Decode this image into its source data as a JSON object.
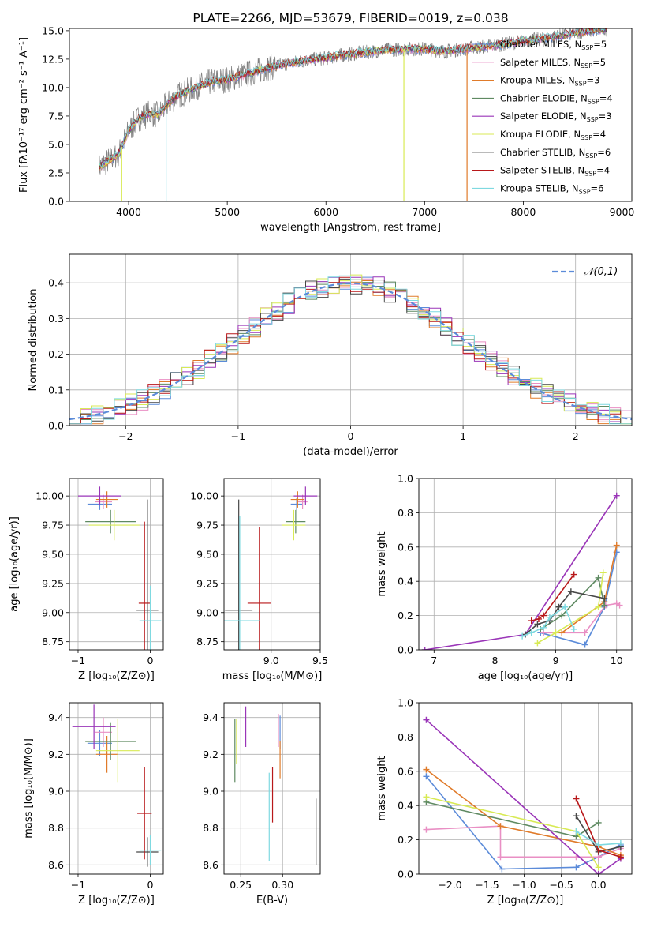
{
  "colors": {
    "Chabrier MILES": "#5b8bd9",
    "Salpeter MILES": "#e98fc4",
    "Kroupa MILES": "#e07b2a",
    "Chabrier ELODIE": "#5f8a62",
    "Salpeter ELODIE": "#9a35b8",
    "Kroupa ELODIE": "#d8ea55",
    "Chabrier STELIB": "#474747",
    "Salpeter STELIB": "#b8181a",
    "Kroupa STELIB": "#7fd9e0"
  },
  "chart_data": [
    {
      "id": "spectrum",
      "type": "line",
      "title": "PLATE=2266, MJD=53679, FIBERID=0019, z=0.038",
      "xlabel": "wavelength [Angstrom, rest frame]",
      "ylabel": "Flux [fλ10⁻¹⁷ erg cm⁻² s⁻¹ A⁻¹]",
      "xlim": [
        3400,
        9100
      ],
      "ylim": [
        0,
        15.2
      ],
      "xticks": [
        4000,
        5000,
        6000,
        7000,
        8000,
        9000
      ],
      "yticks": [
        0.0,
        2.5,
        5.0,
        7.5,
        10.0,
        12.5,
        15.0
      ],
      "grid": false,
      "legend": "top-right",
      "legend_entries": [
        {
          "label": "Chabrier MILES, N",
          "sub": "SSP",
          "tail": "=5",
          "key": "Chabrier MILES"
        },
        {
          "label": "Salpeter MILES, N",
          "sub": "SSP",
          "tail": "=5",
          "key": "Salpeter MILES"
        },
        {
          "label": "Kroupa MILES, N",
          "sub": "SSP",
          "tail": "=3",
          "key": "Kroupa MILES"
        },
        {
          "label": "Chabrier ELODIE, N",
          "sub": "SSP",
          "tail": "=4",
          "key": "Chabrier ELODIE"
        },
        {
          "label": "Salpeter ELODIE, N",
          "sub": "SSP",
          "tail": "=3",
          "key": "Salpeter ELODIE"
        },
        {
          "label": "Kroupa ELODIE, N",
          "sub": "SSP",
          "tail": "=4",
          "key": "Kroupa ELODIE"
        },
        {
          "label": "Chabrier STELIB, N",
          "sub": "SSP",
          "tail": "=6",
          "key": "Chabrier STELIB"
        },
        {
          "label": "Salpeter STELIB, N",
          "sub": "SSP",
          "tail": "=4",
          "key": "Salpeter STELIB"
        },
        {
          "label": "Kroupa STELIB, N",
          "sub": "SSP",
          "tail": "=6",
          "key": "Kroupa STELIB"
        }
      ],
      "continuum": [
        [
          3700,
          3.0
        ],
        [
          3800,
          3.6
        ],
        [
          3900,
          4.2
        ],
        [
          4000,
          6.2
        ],
        [
          4100,
          7.3
        ],
        [
          4200,
          7.7
        ],
        [
          4300,
          7.6
        ],
        [
          4400,
          8.6
        ],
        [
          4500,
          9.3
        ],
        [
          4600,
          9.7
        ],
        [
          4700,
          10.1
        ],
        [
          4800,
          10.4
        ],
        [
          4900,
          10.6
        ],
        [
          5000,
          10.7
        ],
        [
          5200,
          11.2
        ],
        [
          5400,
          11.7
        ],
        [
          5600,
          12.1
        ],
        [
          5800,
          12.4
        ],
        [
          6000,
          12.6
        ],
        [
          6200,
          12.9
        ],
        [
          6400,
          13.1
        ],
        [
          6600,
          13.3
        ],
        [
          6800,
          13.4
        ],
        [
          7000,
          13.4
        ],
        [
          7200,
          13.2
        ],
        [
          7400,
          13.4
        ],
        [
          7600,
          13.6
        ],
        [
          7800,
          13.8
        ],
        [
          8000,
          14.1
        ],
        [
          8200,
          14.3
        ],
        [
          8400,
          14.6
        ],
        [
          8600,
          14.9
        ],
        [
          8800,
          15.1
        ]
      ],
      "spikes": [
        [
          3930,
          0
        ],
        [
          4380,
          0
        ],
        [
          6790,
          0
        ],
        [
          7430,
          0
        ]
      ]
    },
    {
      "id": "residuals",
      "type": "histogram",
      "xlabel": "(data-model)/error",
      "ylabel": "Normed distribution",
      "xlim": [
        -2.5,
        2.5
      ],
      "ylim": [
        0,
        0.48
      ],
      "xticks": [
        -2,
        -1,
        0,
        1,
        2
      ],
      "yticks": [
        0.0,
        0.1,
        0.2,
        0.3,
        0.4
      ],
      "grid": true,
      "legend": "top-right",
      "reference_label": "𝒩(0,1)",
      "bin_width": 0.1
    },
    {
      "id": "age-vs-Z",
      "type": "errorbar",
      "xlabel": "Z [log₁₀(Z/Z⊙)]",
      "ylabel": "age  [log₁₀(age/yr)]",
      "xlim": [
        -1.12,
        0.18
      ],
      "ylim": [
        8.68,
        10.15
      ],
      "xticks": [
        -1,
        0
      ],
      "yticks": [
        8.75,
        9.0,
        9.25,
        9.5,
        9.75,
        10.0
      ],
      "grid": true,
      "points": [
        {
          "key": "Chabrier MILES",
          "x": -0.7,
          "y": 9.93,
          "ex": 0.17,
          "ey": 0.05
        },
        {
          "key": "Salpeter MILES",
          "x": -0.65,
          "y": 9.95,
          "ex": 0.12,
          "ey": 0.06
        },
        {
          "key": "Kroupa MILES",
          "x": -0.6,
          "y": 9.97,
          "ex": 0.15,
          "ey": 0.07
        },
        {
          "key": "Chabrier ELODIE",
          "x": -0.55,
          "y": 9.78,
          "ex": 0.35,
          "ey": 0.1
        },
        {
          "key": "Salpeter ELODIE",
          "x": -0.7,
          "y": 10.0,
          "ex": 0.3,
          "ey": 0.08
        },
        {
          "key": "Kroupa ELODIE",
          "x": -0.5,
          "y": 9.75,
          "ex": 0.35,
          "ey": 0.13
        },
        {
          "key": "Chabrier STELIB",
          "x": -0.04,
          "y": 9.02,
          "ex": 0.15,
          "ey": 0.95
        },
        {
          "key": "Salpeter STELIB",
          "x": -0.08,
          "y": 9.08,
          "ex": 0.08,
          "ey": 0.7
        },
        {
          "key": "Kroupa STELIB",
          "x": 0.0,
          "y": 8.93,
          "ex": 0.15,
          "ey": 0.3
        }
      ]
    },
    {
      "id": "age-vs-mass",
      "type": "errorbar",
      "xlabel": "mass [log₁₀(M/M⊙)]",
      "ylabel": "",
      "xlim": [
        8.52,
        9.5
      ],
      "ylim": [
        8.68,
        10.15
      ],
      "xticks": [
        9.0,
        9.5
      ],
      "yticks": [
        8.75,
        9.0,
        9.25,
        9.5,
        9.75,
        10.0
      ],
      "grid": true,
      "points": [
        {
          "key": "Chabrier MILES",
          "x": 9.26,
          "y": 9.93,
          "ex": 0.06,
          "ey": 0.05
        },
        {
          "key": "Salpeter MILES",
          "x": 9.32,
          "y": 9.95,
          "ex": 0.05,
          "ey": 0.06
        },
        {
          "key": "Kroupa MILES",
          "x": 9.27,
          "y": 9.97,
          "ex": 0.07,
          "ey": 0.07
        },
        {
          "key": "Chabrier ELODIE",
          "x": 9.25,
          "y": 9.78,
          "ex": 0.1,
          "ey": 0.1
        },
        {
          "key": "Salpeter ELODIE",
          "x": 9.35,
          "y": 10.0,
          "ex": 0.12,
          "ey": 0.08
        },
        {
          "key": "Kroupa ELODIE",
          "x": 9.23,
          "y": 9.75,
          "ex": 0.12,
          "ey": 0.13
        },
        {
          "key": "Chabrier STELIB",
          "x": 8.67,
          "y": 9.02,
          "ex": 0.14,
          "ey": 0.95
        },
        {
          "key": "Salpeter STELIB",
          "x": 8.88,
          "y": 9.08,
          "ex": 0.12,
          "ey": 0.65
        },
        {
          "key": "Kroupa STELIB",
          "x": 8.68,
          "y": 8.93,
          "ex": 0.2,
          "ey": 0.9
        }
      ]
    },
    {
      "id": "weight-vs-age",
      "type": "line",
      "xlabel": "age  [log₁₀(age/yr)]",
      "ylabel": "mass weight",
      "xlim": [
        6.75,
        10.25
      ],
      "ylim": [
        0,
        1
      ],
      "xticks": [
        7,
        8,
        9,
        10
      ],
      "yticks": [
        0.0,
        0.2,
        0.4,
        0.6,
        0.8,
        1.0
      ],
      "grid": true,
      "series": [
        {
          "key": "Chabrier MILES",
          "x": [
            8.75,
            9.48,
            9.8,
            10.0
          ],
          "y": [
            0.1,
            0.03,
            0.25,
            0.57
          ]
        },
        {
          "key": "Salpeter MILES",
          "x": [
            8.8,
            9.48,
            9.82,
            10.0,
            10.05
          ],
          "y": [
            0.1,
            0.1,
            0.26,
            0.27,
            0.26
          ]
        },
        {
          "key": "Kroupa MILES",
          "x": [
            9.1,
            9.8,
            10.0
          ],
          "y": [
            0.1,
            0.28,
            0.61
          ]
        },
        {
          "key": "Chabrier ELODIE",
          "x": [
            8.75,
            9.1,
            9.7,
            9.8
          ],
          "y": [
            0.12,
            0.2,
            0.42,
            0.26
          ]
        },
        {
          "key": "Salpeter ELODIE",
          "x": [
            6.85,
            8.5,
            10.0
          ],
          "y": [
            0.0,
            0.09,
            0.9
          ]
        },
        {
          "key": "Kroupa ELODIE",
          "x": [
            8.7,
            9.0,
            9.7,
            9.78
          ],
          "y": [
            0.04,
            0.1,
            0.25,
            0.45
          ]
        },
        {
          "key": "Chabrier STELIB",
          "x": [
            8.5,
            8.7,
            8.9,
            9.05,
            9.25,
            9.8
          ],
          "y": [
            0.09,
            0.15,
            0.17,
            0.25,
            0.34,
            0.3
          ]
        },
        {
          "key": "Salpeter STELIB",
          "x": [
            8.6,
            8.72,
            8.8,
            9.3
          ],
          "y": [
            0.17,
            0.18,
            0.2,
            0.44
          ]
        },
        {
          "key": "Kroupa STELIB",
          "x": [
            8.45,
            8.6,
            8.8,
            8.9,
            9.15,
            9.3
          ],
          "y": [
            0.08,
            0.1,
            0.13,
            0.19,
            0.25,
            0.12
          ]
        }
      ]
    },
    {
      "id": "mass-vs-Z",
      "type": "errorbar",
      "xlabel": "Z [log₁₀(Z/Z⊙)]",
      "ylabel": "mass [log₁₀(M/M⊙)]",
      "xlim": [
        -1.12,
        0.18
      ],
      "ylim": [
        8.55,
        9.48
      ],
      "xticks": [
        -1,
        0
      ],
      "yticks": [
        8.6,
        8.8,
        9.0,
        9.2,
        9.4
      ],
      "grid": true,
      "points": [
        {
          "key": "Chabrier MILES",
          "x": -0.7,
          "y": 9.26,
          "ex": 0.17,
          "ey": 0.07
        },
        {
          "key": "Salpeter MILES",
          "x": -0.65,
          "y": 9.32,
          "ex": 0.12,
          "ey": 0.08
        },
        {
          "key": "Kroupa MILES",
          "x": -0.6,
          "y": 9.2,
          "ex": 0.15,
          "ey": 0.1
        },
        {
          "key": "Chabrier ELODIE",
          "x": -0.55,
          "y": 9.27,
          "ex": 0.35,
          "ey": 0.1
        },
        {
          "key": "Salpeter ELODIE",
          "x": -0.78,
          "y": 9.35,
          "ex": 0.3,
          "ey": 0.12
        },
        {
          "key": "Kroupa ELODIE",
          "x": -0.45,
          "y": 9.22,
          "ex": 0.3,
          "ey": 0.17
        },
        {
          "key": "Chabrier STELIB",
          "x": -0.04,
          "y": 8.67,
          "ex": 0.15,
          "ey": 0.08
        },
        {
          "key": "Salpeter STELIB",
          "x": -0.08,
          "y": 8.88,
          "ex": 0.1,
          "ey": 0.25
        },
        {
          "key": "Kroupa STELIB",
          "x": 0.0,
          "y": 8.68,
          "ex": 0.15,
          "ey": 0.08
        }
      ]
    },
    {
      "id": "mass-vs-EBV",
      "type": "errorbar",
      "xlabel": "E(B-V)",
      "ylabel": "",
      "xlim": [
        0.23,
        0.345
      ],
      "ylim": [
        8.55,
        9.48
      ],
      "xticks": [
        0.25,
        0.3
      ],
      "yticks": [
        8.6,
        8.8,
        9.0,
        9.2,
        9.4
      ],
      "grid": true,
      "points": [
        {
          "key": "Chabrier MILES",
          "x": 0.297,
          "y": 9.32,
          "ex": 0,
          "ey": 0.09
        },
        {
          "key": "Salpeter MILES",
          "x": 0.295,
          "y": 9.33,
          "ex": 0,
          "ey": 0.09
        },
        {
          "key": "Kroupa MILES",
          "x": 0.297,
          "y": 9.17,
          "ex": 0,
          "ey": 0.1
        },
        {
          "key": "Chabrier ELODIE",
          "x": 0.243,
          "y": 9.22,
          "ex": 0,
          "ey": 0.17
        },
        {
          "key": "Salpeter ELODIE",
          "x": 0.256,
          "y": 9.35,
          "ex": 0,
          "ey": 0.11
        },
        {
          "key": "Kroupa ELODIE",
          "x": 0.245,
          "y": 9.27,
          "ex": 0,
          "ey": 0.12
        },
        {
          "key": "Chabrier STELIB",
          "x": 0.34,
          "y": 8.78,
          "ex": 0,
          "ey": 0.18
        },
        {
          "key": "Salpeter STELIB",
          "x": 0.288,
          "y": 8.98,
          "ex": 0,
          "ey": 0.15
        },
        {
          "key": "Kroupa STELIB",
          "x": 0.284,
          "y": 8.86,
          "ex": 0,
          "ey": 0.24
        }
      ]
    },
    {
      "id": "weight-vs-Z",
      "type": "line",
      "xlabel": "Z [log₁₀(Z/Z⊙)]",
      "ylabel": "mass weight",
      "xlim": [
        -2.42,
        0.45
      ],
      "ylim": [
        0,
        1
      ],
      "xticks": [
        -2.0,
        -1.5,
        -1.0,
        -0.5,
        0.0
      ],
      "yticks": [
        0.0,
        0.2,
        0.4,
        0.6,
        0.8,
        1.0
      ],
      "grid": true,
      "series": [
        {
          "key": "Chabrier MILES",
          "x": [
            -2.32,
            -1.3,
            -0.3,
            0.0,
            0.3
          ],
          "y": [
            0.57,
            0.03,
            0.04,
            0.1,
            0.17
          ]
        },
        {
          "key": "Salpeter MILES",
          "x": [
            -2.32,
            -1.32,
            -1.32,
            -0.3,
            0.0,
            0.3
          ],
          "y": [
            0.26,
            0.28,
            0.1,
            0.1,
            0.1,
            0.15
          ]
        },
        {
          "key": "Kroupa MILES",
          "x": [
            -2.32,
            -1.32,
            0.0,
            0.3
          ],
          "y": [
            0.61,
            0.28,
            0.16,
            0.11
          ]
        },
        {
          "key": "Chabrier ELODIE",
          "x": [
            -2.32,
            -0.3,
            0.0
          ],
          "y": [
            0.42,
            0.22,
            0.3
          ]
        },
        {
          "key": "Salpeter ELODIE",
          "x": [
            -2.32,
            0.0,
            0.3
          ],
          "y": [
            0.9,
            0.0,
            0.09
          ]
        },
        {
          "key": "Kroupa ELODIE",
          "x": [
            -2.32,
            -0.3,
            0.0
          ],
          "y": [
            0.45,
            0.25,
            0.04
          ]
        },
        {
          "key": "Chabrier STELIB",
          "x": [
            -0.3,
            0.0,
            0.3
          ],
          "y": [
            0.34,
            0.13,
            0.16
          ]
        },
        {
          "key": "Salpeter STELIB",
          "x": [
            -0.3,
            0.0,
            0.3
          ],
          "y": [
            0.44,
            0.14,
            0.1
          ]
        },
        {
          "key": "Kroupa STELIB",
          "x": [
            -0.3,
            0.0,
            0.3
          ],
          "y": [
            0.25,
            0.17,
            0.18
          ]
        }
      ]
    }
  ]
}
